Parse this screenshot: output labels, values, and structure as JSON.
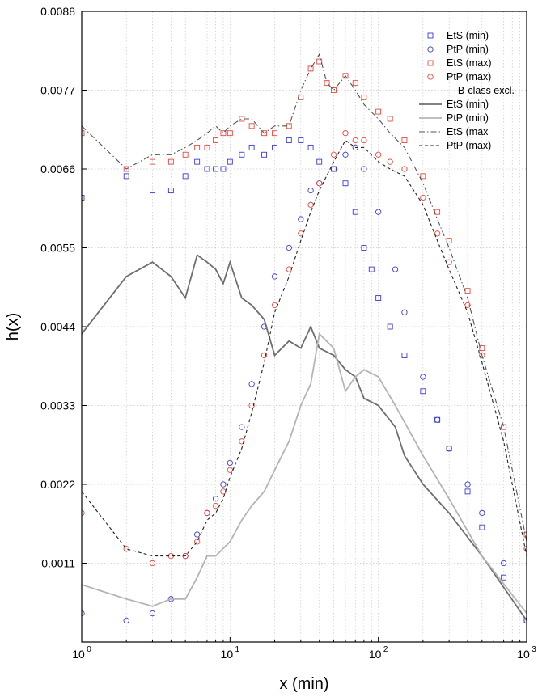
{
  "chart_data": {
    "type": "scatter",
    "xlabel": "x (min)",
    "ylabel": "h(x)",
    "xscale": "log",
    "xlim": [
      1,
      1000
    ],
    "ylim": [
      0.0,
      0.0088
    ],
    "xticks": [
      1,
      10,
      100,
      1000
    ],
    "xtick_labels": [
      {
        "base": "10",
        "exp": "0"
      },
      {
        "base": "10",
        "exp": "1"
      },
      {
        "base": "10",
        "exp": "2"
      },
      {
        "base": "10",
        "exp": "3"
      }
    ],
    "yticks": [
      "0.0011",
      "0.0022",
      "0.0033",
      "0.0044",
      "0.0055",
      "0.0066",
      "0.0077",
      "0.0088"
    ],
    "grid": true,
    "legend_position": "top-right",
    "legend_group_title": "B-class excl.",
    "colors": {
      "blue": "#3b3bd6",
      "red": "#e8473f",
      "dark_gray": "#6e6e6e",
      "light_gray": "#b4b4b4",
      "dash_black": "#222222"
    },
    "series": [
      {
        "name": "EtS (min)",
        "marker": "square",
        "color": "#3b3bd6",
        "x": [
          1,
          2,
          3,
          4,
          5,
          6,
          7,
          8,
          9,
          10,
          12,
          14,
          17,
          20,
          25,
          30,
          35,
          40,
          50,
          60,
          70,
          80,
          90,
          100,
          120,
          150,
          200,
          250,
          300,
          400,
          500,
          700,
          1000
        ],
        "y": [
          0.0062,
          0.0065,
          0.0063,
          0.0063,
          0.0065,
          0.0067,
          0.0066,
          0.0066,
          0.0066,
          0.0067,
          0.0068,
          0.0069,
          0.0068,
          0.0069,
          0.007,
          0.007,
          0.0069,
          0.0067,
          0.0066,
          0.0064,
          0.006,
          0.0055,
          0.0052,
          0.0048,
          0.0044,
          0.004,
          0.0035,
          0.0031,
          0.0027,
          0.0021,
          0.0016,
          0.0009,
          0.0003
        ]
      },
      {
        "name": "PtP (min)",
        "marker": "circle",
        "color": "#3b3bd6",
        "x": [
          1,
          2,
          3,
          4,
          5,
          6,
          7,
          8,
          9,
          10,
          12,
          14,
          17,
          20,
          25,
          30,
          35,
          40,
          50,
          60,
          70,
          80,
          100,
          130,
          150,
          200,
          250,
          300,
          400,
          500,
          700,
          1000
        ],
        "y": [
          0.0004,
          0.0003,
          0.0004,
          0.0006,
          0.0012,
          0.0015,
          0.0018,
          0.002,
          0.0022,
          0.0025,
          0.003,
          0.0036,
          0.0044,
          0.0051,
          0.0055,
          0.0059,
          0.0063,
          0.0064,
          0.0066,
          0.0068,
          0.0069,
          0.0066,
          0.006,
          0.0052,
          0.0046,
          0.0037,
          0.0031,
          0.0027,
          0.0022,
          0.0018,
          0.0011,
          0.0003
        ]
      },
      {
        "name": "EtS (max)",
        "marker": "square",
        "color": "#e8473f",
        "x": [
          1,
          2,
          3,
          4,
          5,
          6,
          7,
          8,
          9,
          10,
          12,
          14,
          17,
          20,
          25,
          30,
          35,
          40,
          45,
          50,
          60,
          70,
          80,
          100,
          120,
          150,
          200,
          250,
          300,
          400,
          500,
          700,
          1000
        ],
        "y": [
          0.0071,
          0.0066,
          0.0067,
          0.0067,
          0.0068,
          0.0069,
          0.0069,
          0.007,
          0.0071,
          0.0071,
          0.0073,
          0.0072,
          0.0071,
          0.0071,
          0.0072,
          0.0076,
          0.008,
          0.0081,
          0.0078,
          0.0077,
          0.0079,
          0.0078,
          0.0076,
          0.0074,
          0.0073,
          0.007,
          0.0065,
          0.006,
          0.0056,
          0.0049,
          0.0041,
          0.003,
          0.0015
        ]
      },
      {
        "name": "PtP (max)",
        "marker": "circle",
        "color": "#e8473f",
        "x": [
          1,
          2,
          3,
          4,
          5,
          6,
          7,
          8,
          9,
          10,
          12,
          14,
          17,
          20,
          25,
          30,
          35,
          40,
          50,
          60,
          70,
          80,
          100,
          120,
          150,
          200,
          250,
          300,
          400,
          500,
          700,
          1000
        ],
        "y": [
          0.0018,
          0.0013,
          0.0011,
          0.0012,
          0.0012,
          0.0014,
          0.0018,
          0.0019,
          0.0021,
          0.0024,
          0.0028,
          0.0033,
          0.004,
          0.0047,
          0.0052,
          0.0057,
          0.0061,
          0.0064,
          0.0068,
          0.0071,
          0.007,
          0.007,
          0.0068,
          0.0067,
          0.0066,
          0.0062,
          0.0057,
          0.0053,
          0.0047,
          0.004,
          0.003,
          0.0013
        ]
      },
      {
        "name": "EtS (min)",
        "group": "B-class excl.",
        "line": "solid",
        "color": "#6e6e6e",
        "x": [
          1,
          2,
          3,
          4,
          5,
          6,
          7,
          8,
          9,
          10,
          12,
          14,
          17,
          20,
          25,
          30,
          35,
          40,
          50,
          60,
          70,
          80,
          100,
          130,
          150,
          200,
          300,
          500,
          1000
        ],
        "y": [
          0.0043,
          0.0051,
          0.0053,
          0.0051,
          0.0048,
          0.0054,
          0.0053,
          0.0052,
          0.005,
          0.0053,
          0.0048,
          0.0047,
          0.0045,
          0.004,
          0.0042,
          0.0041,
          0.0044,
          0.0041,
          0.004,
          0.0038,
          0.0037,
          0.0034,
          0.0033,
          0.003,
          0.0026,
          0.0022,
          0.0018,
          0.0012,
          0.0003
        ]
      },
      {
        "name": "PtP (min)",
        "group": "B-class excl.",
        "line": "solid",
        "color": "#b4b4b4",
        "x": [
          1,
          2,
          3,
          4,
          5,
          6,
          7,
          8,
          10,
          12,
          14,
          17,
          20,
          25,
          30,
          35,
          40,
          50,
          60,
          70,
          80,
          100,
          130,
          200,
          300,
          500,
          1000
        ],
        "y": [
          0.0008,
          0.0006,
          0.0005,
          0.0006,
          0.0006,
          0.0009,
          0.0012,
          0.0012,
          0.0014,
          0.0017,
          0.0019,
          0.0021,
          0.0024,
          0.0028,
          0.0033,
          0.0036,
          0.0043,
          0.0041,
          0.0035,
          0.0037,
          0.0038,
          0.0037,
          0.0033,
          0.0026,
          0.002,
          0.0012,
          0.0004
        ]
      },
      {
        "name": "EtS (max",
        "group": "B-class excl.",
        "line": "dashdot",
        "color": "#555555",
        "x": [
          1,
          2,
          3,
          4,
          5,
          6,
          7,
          8,
          9,
          10,
          12,
          14,
          17,
          20,
          25,
          30,
          35,
          40,
          45,
          50,
          60,
          70,
          80,
          100,
          120,
          150,
          200,
          250,
          300,
          400,
          500,
          700,
          1000
        ],
        "y": [
          0.0072,
          0.0066,
          0.0068,
          0.0068,
          0.0069,
          0.007,
          0.0071,
          0.0072,
          0.0071,
          0.0072,
          0.0073,
          0.0073,
          0.0071,
          0.0072,
          0.0072,
          0.0077,
          0.008,
          0.0082,
          0.0078,
          0.0077,
          0.0079,
          0.0077,
          0.0075,
          0.0073,
          0.0071,
          0.0069,
          0.0064,
          0.0059,
          0.0055,
          0.0048,
          0.004,
          0.003,
          0.0014
        ]
      },
      {
        "name": "PtP (max)",
        "group": "B-class excl.",
        "line": "dashed",
        "color": "#222222",
        "x": [
          1,
          2,
          3,
          4,
          5,
          6,
          7,
          8,
          9,
          10,
          12,
          14,
          17,
          20,
          25,
          30,
          35,
          40,
          50,
          60,
          70,
          80,
          100,
          120,
          150,
          200,
          250,
          300,
          400,
          500,
          700,
          1000
        ],
        "y": [
          0.0021,
          0.0013,
          0.0012,
          0.0012,
          0.0012,
          0.0014,
          0.0017,
          0.0018,
          0.002,
          0.0023,
          0.0027,
          0.0032,
          0.0039,
          0.0046,
          0.0051,
          0.0056,
          0.006,
          0.0063,
          0.0067,
          0.007,
          0.0069,
          0.0069,
          0.0067,
          0.0066,
          0.0065,
          0.0061,
          0.0056,
          0.0052,
          0.0046,
          0.0039,
          0.0028,
          0.0012
        ]
      }
    ]
  }
}
